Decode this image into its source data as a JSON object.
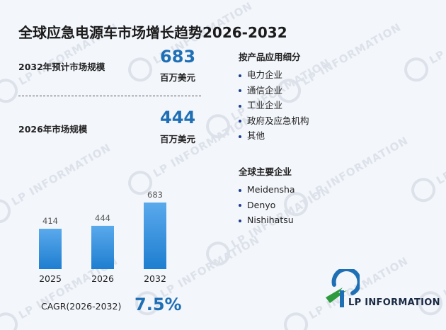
{
  "title": "全球应急电源车市场增长趋势2026-2032",
  "stats": {
    "forecast_label": "2032年预计市场规模",
    "forecast_value": "683",
    "forecast_unit": "百万美元",
    "current_label": "2026年市场规模",
    "current_value": "444",
    "current_unit": "百万美元"
  },
  "chart_data": {
    "type": "bar",
    "categories": [
      "2025",
      "2026",
      "2032"
    ],
    "values": [
      414,
      444,
      683
    ],
    "ylim": [
      0,
      683
    ],
    "grid": false,
    "colors": {
      "bar_top": "#5aa9ec",
      "bar_bottom": "#1e7ed0"
    }
  },
  "cagr": {
    "label": "CAGR(2026-2032)",
    "value": "7.5%"
  },
  "segments": {
    "title": "按产品应用细分",
    "items": [
      "电力企业",
      "通信企业",
      "工业企业",
      "政府及应急机构",
      "其他"
    ]
  },
  "companies": {
    "title": "全球主要企业",
    "items": [
      "Meidensha",
      "Denyo",
      "Nishihatsu"
    ]
  },
  "brand": {
    "logo_text": "LP INFORMATION",
    "watermark_text": "LP INFORMATION"
  },
  "colors": {
    "accent": "#1f6fb5",
    "bullet": "#1b3f8f"
  }
}
